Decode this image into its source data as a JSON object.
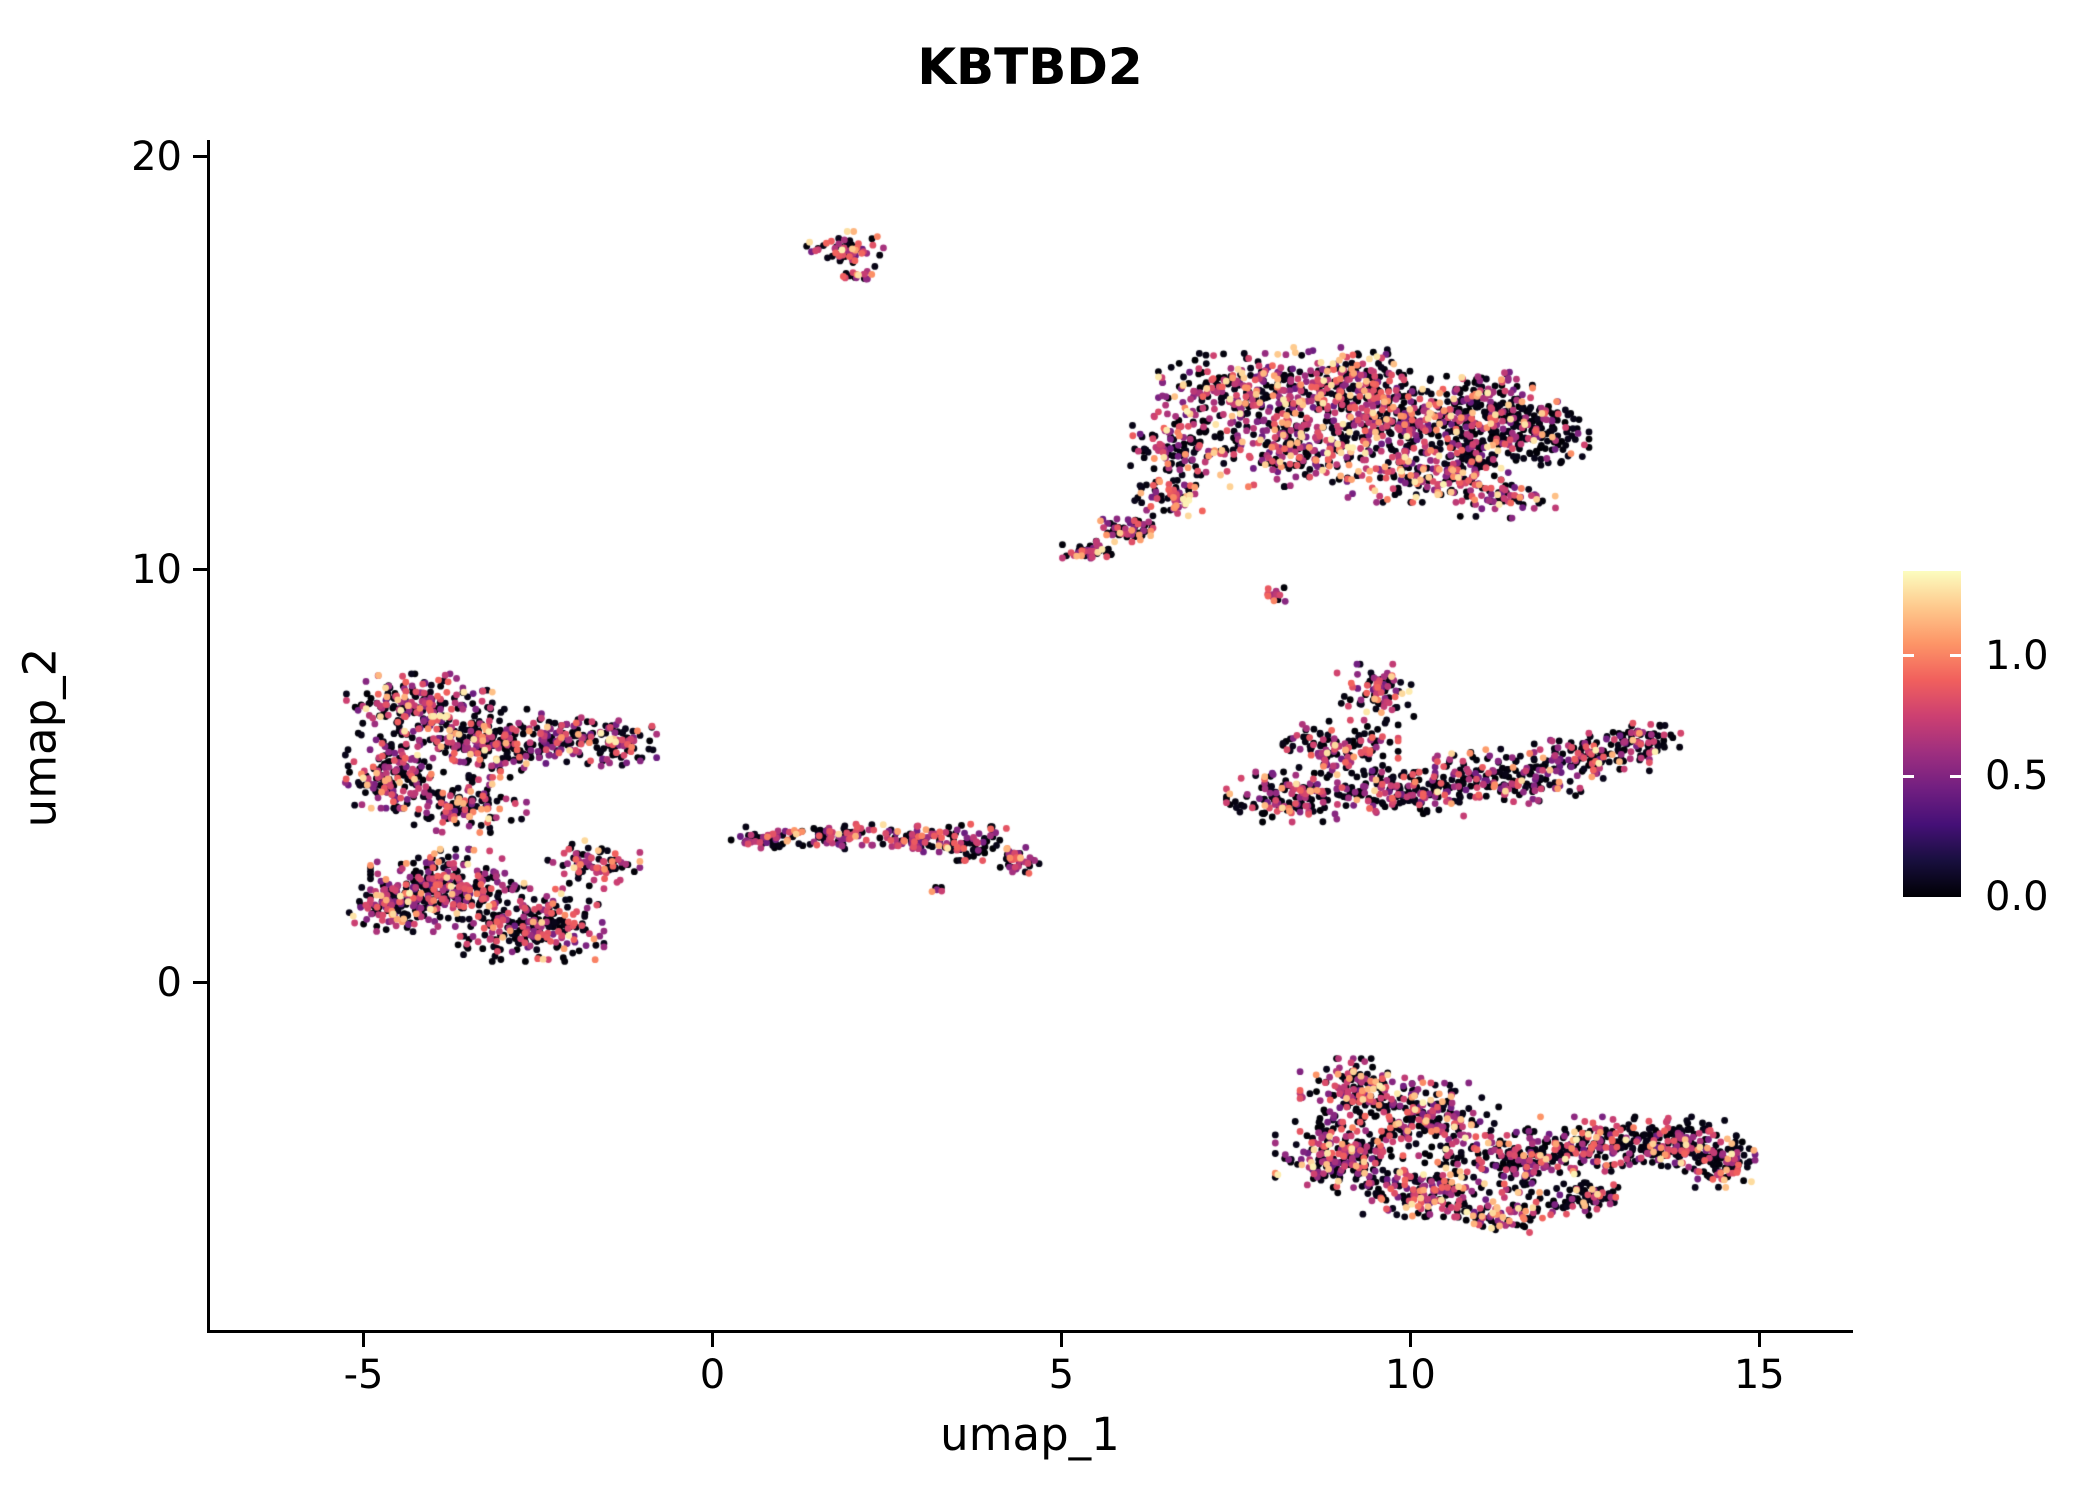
{
  "title": "KBTBD2",
  "chart_data": {
    "type": "scatter",
    "title": "KBTBD2",
    "xlabel": "umap_1",
    "ylabel": "umap_2",
    "xlim": [
      -7.2,
      16.3
    ],
    "ylim": [
      -8.4,
      20.4
    ],
    "x_ticks": [
      {
        "value": -5,
        "label": "-5"
      },
      {
        "value": 0,
        "label": "0"
      },
      {
        "value": 5,
        "label": "5"
      },
      {
        "value": 10,
        "label": "10"
      },
      {
        "value": 15,
        "label": "15"
      }
    ],
    "y_ticks": [
      {
        "value": 0,
        "label": "0"
      },
      {
        "value": 10,
        "label": "10"
      },
      {
        "value": 20,
        "label": "20"
      }
    ],
    "grid": false,
    "legend_position": "right",
    "point_radius_px": 3.4,
    "seed": 7,
    "colormap": {
      "name": "magma",
      "stops": [
        "#000004",
        "#180f3e",
        "#451077",
        "#721f81",
        "#9f2f7f",
        "#cd4071",
        "#f1605d",
        "#fd9567",
        "#fec98d",
        "#fcfdbf"
      ]
    },
    "colorbar": {
      "min": 0,
      "max": 1.35,
      "ticks": [
        {
          "value": 1.0,
          "label": "1.0"
        },
        {
          "value": 0.5,
          "label": "0.5"
        },
        {
          "value": 0.0,
          "label": "0.0"
        }
      ]
    },
    "value_ranges": {
      "zero": [
        0.0,
        0.06
      ],
      "mid": [
        0.42,
        0.92
      ],
      "high": [
        0.98,
        1.32
      ]
    },
    "clusters": [
      {
        "name": "top-small-cluster",
        "mix": {
          "zero": 0.38,
          "mid": 0.47,
          "high": 0.15
        },
        "blobs": [
          [
            1.9,
            17.8,
            0.5,
            0.35,
            60
          ],
          [
            2.15,
            17.15,
            0.25,
            0.3,
            18
          ]
        ]
      },
      {
        "name": "upper-right-main-cluster",
        "mix": {
          "zero": 0.4,
          "mid": 0.44,
          "high": 0.16
        },
        "blobs": [
          [
            7.6,
            14.3,
            1.1,
            0.85,
            260
          ],
          [
            9.2,
            14.5,
            1.0,
            0.8,
            240
          ],
          [
            8.6,
            13.0,
            1.2,
            0.9,
            260
          ],
          [
            10.2,
            12.4,
            1.0,
            0.7,
            170
          ],
          [
            9.9,
            13.6,
            0.9,
            0.7,
            170
          ],
          [
            6.7,
            13.0,
            0.7,
            0.7,
            120
          ],
          [
            11.2,
            11.8,
            0.8,
            0.5,
            70
          ],
          [
            5.4,
            10.45,
            0.35,
            0.22,
            45
          ],
          [
            6.0,
            11.0,
            0.4,
            0.35,
            55
          ],
          [
            6.6,
            11.8,
            0.5,
            0.45,
            70
          ]
        ]
      },
      {
        "name": "upper-right-dark-lobe",
        "mix": {
          "zero": 0.66,
          "mid": 0.27,
          "high": 0.07
        },
        "blobs": [
          [
            11.1,
            13.9,
            0.8,
            0.8,
            200
          ],
          [
            11.9,
            13.3,
            0.6,
            0.7,
            130
          ],
          [
            10.9,
            12.9,
            0.6,
            0.6,
            100
          ]
        ]
      },
      {
        "name": "tiny-mid-cluster",
        "mix": {
          "zero": 0.4,
          "mid": 0.5,
          "high": 0.1
        },
        "blobs": [
          [
            8.05,
            9.4,
            0.2,
            0.25,
            14
          ]
        ]
      },
      {
        "name": "middle-right-cluster",
        "mix": {
          "zero": 0.55,
          "mid": 0.38,
          "high": 0.07
        },
        "blobs": [
          [
            9.5,
            7.0,
            0.5,
            0.65,
            85
          ],
          [
            9.0,
            5.7,
            0.75,
            0.6,
            130
          ],
          [
            8.3,
            4.5,
            0.85,
            0.55,
            150
          ],
          [
            10.0,
            4.7,
            0.95,
            0.6,
            170
          ],
          [
            11.4,
            5.0,
            0.95,
            0.6,
            160
          ],
          [
            12.6,
            5.5,
            0.75,
            0.5,
            130
          ],
          [
            13.4,
            5.9,
            0.45,
            0.35,
            60
          ]
        ]
      },
      {
        "name": "left-main-cluster",
        "mix": {
          "zero": 0.5,
          "mid": 0.42,
          "high": 0.08
        },
        "blobs": [
          [
            -4.2,
            6.6,
            0.95,
            0.8,
            250
          ],
          [
            -3.2,
            5.8,
            0.9,
            0.75,
            210
          ],
          [
            -4.6,
            5.0,
            0.6,
            0.7,
            140
          ],
          [
            -2.2,
            5.9,
            0.7,
            0.5,
            110
          ],
          [
            -1.35,
            5.8,
            0.5,
            0.5,
            80
          ],
          [
            -3.6,
            4.3,
            0.85,
            0.6,
            130
          ],
          [
            -3.8,
            2.3,
            1.0,
            0.85,
            280
          ],
          [
            -2.6,
            1.4,
            0.95,
            0.8,
            240
          ],
          [
            -4.6,
            1.9,
            0.55,
            0.6,
            120
          ],
          [
            -1.7,
            2.9,
            0.6,
            0.5,
            80
          ]
        ]
      },
      {
        "name": "center-strip-cluster",
        "mix": {
          "zero": 0.48,
          "mid": 0.44,
          "high": 0.08
        },
        "blobs": [
          [
            0.8,
            3.5,
            0.5,
            0.25,
            50
          ],
          [
            1.9,
            3.55,
            0.6,
            0.28,
            80
          ],
          [
            3.0,
            3.5,
            0.5,
            0.3,
            70
          ],
          [
            3.75,
            3.4,
            0.45,
            0.4,
            65
          ],
          [
            4.35,
            2.95,
            0.3,
            0.3,
            40
          ],
          [
            3.2,
            2.2,
            0.1,
            0.1,
            5
          ]
        ]
      },
      {
        "name": "bottom-right-left-lobe",
        "mix": {
          "zero": 0.46,
          "mid": 0.44,
          "high": 0.1
        },
        "blobs": [
          [
            9.3,
            -2.6,
            0.8,
            0.7,
            170
          ],
          [
            10.3,
            -3.3,
            0.9,
            0.8,
            210
          ],
          [
            9.0,
            -4.2,
            0.85,
            0.8,
            210
          ],
          [
            10.2,
            -5.0,
            0.8,
            0.6,
            160
          ],
          [
            11.3,
            -5.6,
            0.7,
            0.4,
            85
          ]
        ]
      },
      {
        "name": "bottom-right-right-lobe",
        "mix": {
          "zero": 0.58,
          "mid": 0.36,
          "high": 0.06
        },
        "blobs": [
          [
            11.5,
            -4.3,
            0.9,
            0.7,
            190
          ],
          [
            12.7,
            -3.9,
            0.9,
            0.6,
            170
          ],
          [
            13.9,
            -3.9,
            0.7,
            0.6,
            150
          ],
          [
            14.5,
            -4.4,
            0.4,
            0.5,
            80
          ],
          [
            12.5,
            -5.2,
            0.6,
            0.4,
            80
          ]
        ]
      }
    ]
  }
}
